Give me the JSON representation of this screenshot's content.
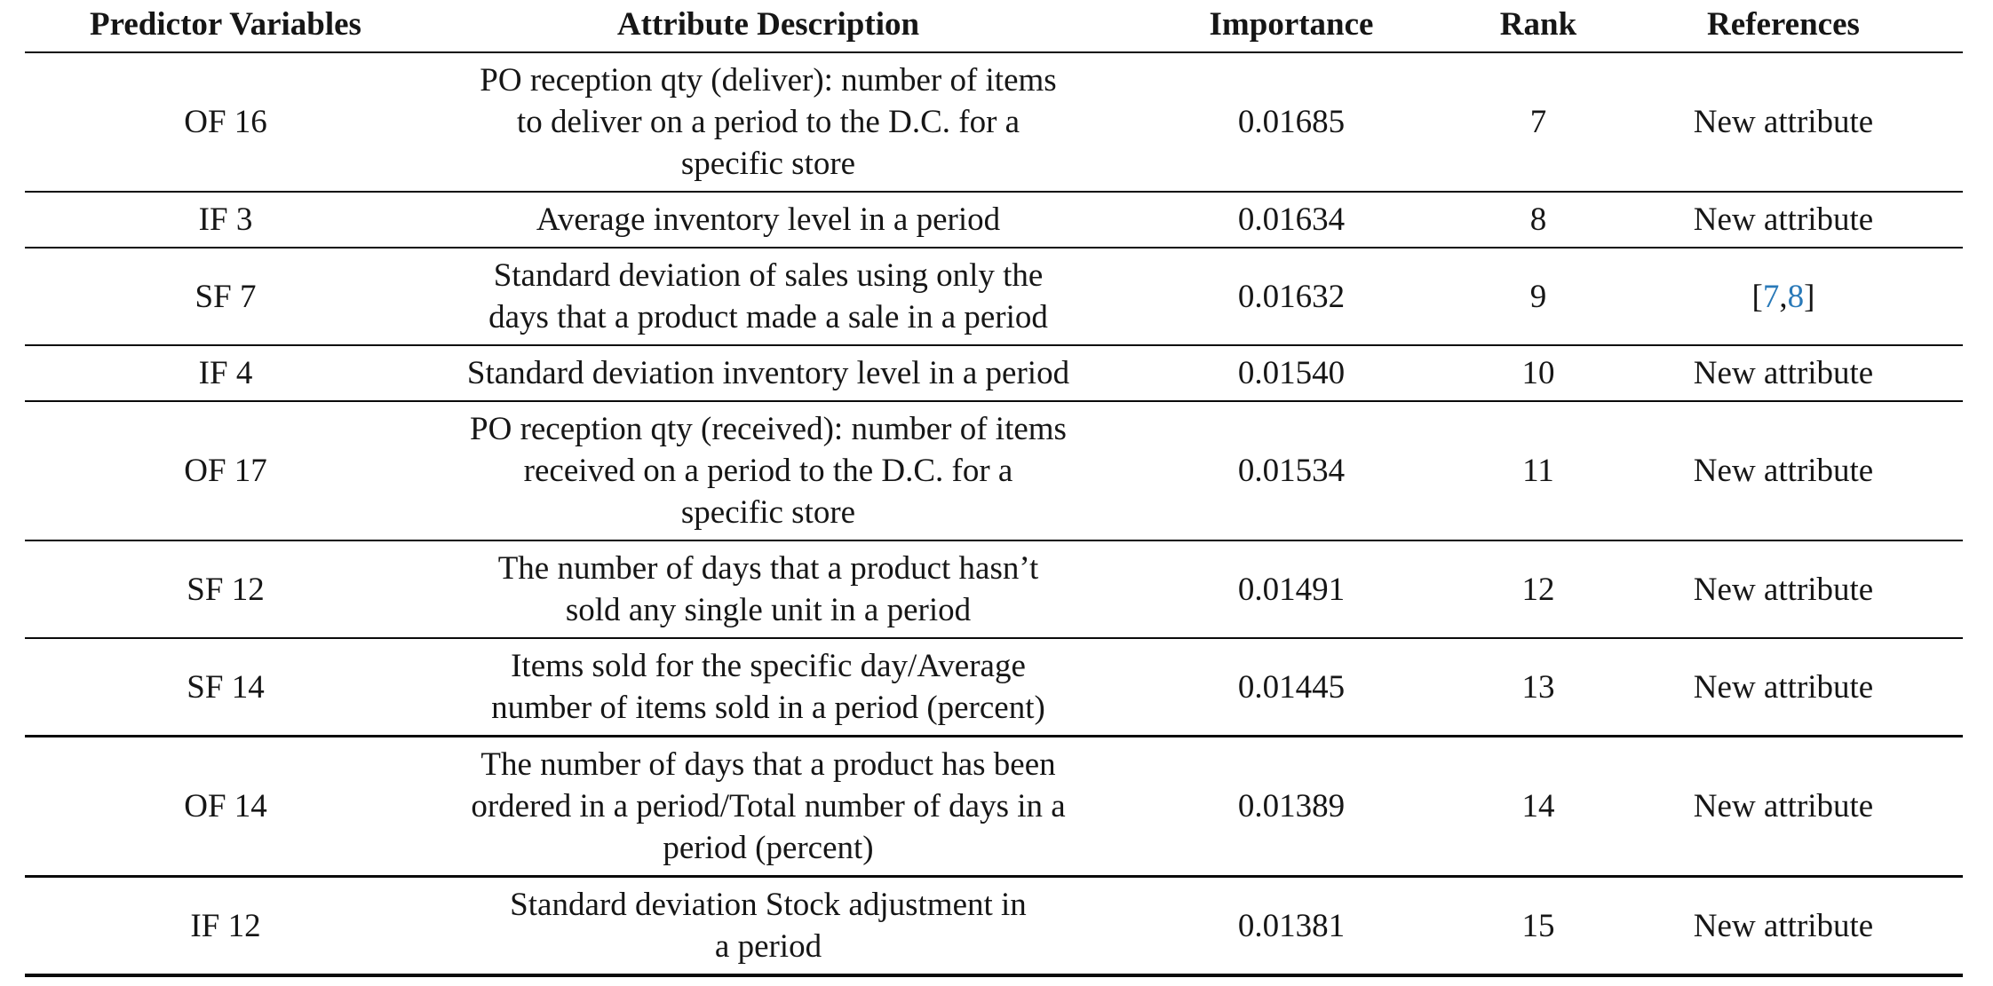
{
  "table": {
    "link_color": "#2979b8",
    "columns": [
      "Predictor Variables",
      "Attribute Description",
      "Importance",
      "Rank",
      "References"
    ],
    "rows": [
      {
        "variable": "OF 16",
        "description": "PO reception qty (deliver): number of items\nto deliver on a period to the D.C. for a\nspecific store",
        "importance": "0.01685",
        "rank": "7",
        "reference": {
          "label": "New attribute"
        }
      },
      {
        "variable": "IF 3",
        "description": "Average inventory level in a period",
        "importance": "0.01634",
        "rank": "8",
        "reference": {
          "label": "New attribute"
        }
      },
      {
        "variable": "SF 7",
        "description": "Standard deviation of sales using only the\ndays that a product made a sale in a period",
        "importance": "0.01632",
        "rank": "9",
        "reference": {
          "open": "[",
          "links": [
            "7",
            "8"
          ],
          "separator": ",",
          "close": "]"
        }
      },
      {
        "variable": "IF 4",
        "description": "Standard deviation inventory level in a period",
        "importance": "0.01540",
        "rank": "10",
        "reference": {
          "label": "New attribute"
        }
      },
      {
        "variable": "OF 17",
        "description": "PO reception qty (received): number of items\nreceived on a period to the D.C. for a\nspecific store",
        "importance": "0.01534",
        "rank": "11",
        "reference": {
          "label": "New attribute"
        }
      },
      {
        "variable": "SF 12",
        "description": "The number of days that a product hasn’t\nsold any single unit in a period",
        "importance": "0.01491",
        "rank": "12",
        "reference": {
          "label": "New attribute"
        }
      },
      {
        "variable": "SF 14",
        "description": "Items sold for the specific day/Average\nnumber of items sold in a period (percent)",
        "importance": "0.01445",
        "rank": "13",
        "reference": {
          "label": "New attribute"
        }
      },
      {
        "variable": "OF 14",
        "description": "The number of days that a product has been\nordered in a period/Total number of days in a\nperiod (percent)",
        "importance": "0.01389",
        "rank": "14",
        "reference": {
          "label": "New attribute"
        }
      },
      {
        "variable": "IF 12",
        "description": "Standard deviation Stock adjustment in\na period",
        "importance": "0.01381",
        "rank": "15",
        "reference": {
          "label": "New attribute"
        }
      }
    ]
  }
}
